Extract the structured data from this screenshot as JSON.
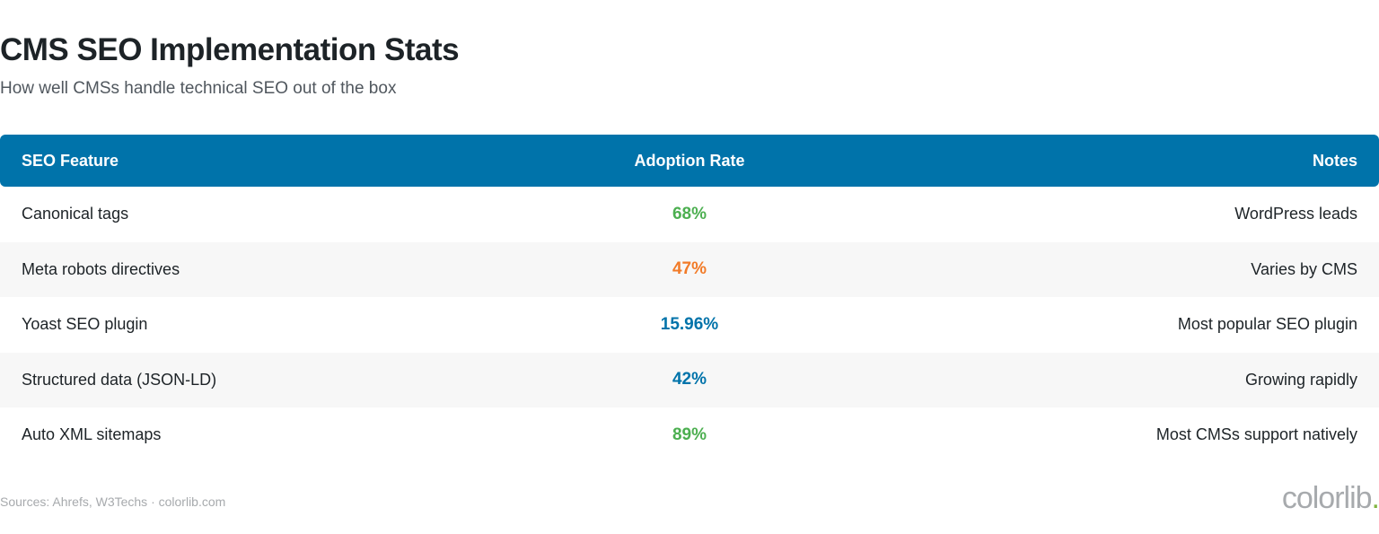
{
  "header": {
    "title": "CMS SEO Implementation Stats",
    "subtitle": "How well CMSs handle technical SEO out of the box"
  },
  "table": {
    "columns": [
      "SEO Feature",
      "Adoption Rate",
      "Notes"
    ],
    "rows": [
      {
        "feature": "Canonical tags",
        "rate": "68%",
        "rate_color": "#4caf50",
        "note": "WordPress leads"
      },
      {
        "feature": "Meta robots directives",
        "rate": "47%",
        "rate_color": "#f27b28",
        "note": "Varies by CMS"
      },
      {
        "feature": "Yoast SEO plugin",
        "rate": "15.96%",
        "rate_color": "#0073aa",
        "note": "Most popular SEO plugin"
      },
      {
        "feature": "Structured data (JSON-LD)",
        "rate": "42%",
        "rate_color": "#0073aa",
        "note": "Growing rapidly"
      },
      {
        "feature": "Auto XML sitemaps",
        "rate": "89%",
        "rate_color": "#4caf50",
        "note": "Most CMSs support natively"
      }
    ]
  },
  "footer": {
    "source": "Sources: Ahrefs, W3Techs · colorlib.com",
    "logo_text": "colorlib",
    "logo_dot": "."
  },
  "colors": {
    "header_bg": "#0073aa",
    "alt_row_bg": "#f7f7f7",
    "title_text": "#1d2327",
    "logo_accent": "#82b541"
  }
}
